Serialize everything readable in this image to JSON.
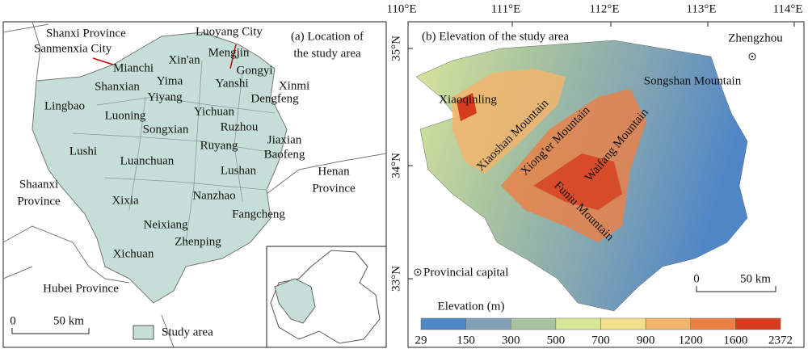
{
  "panel_a": {
    "title_lines": [
      "(a) Location of",
      "the study area"
    ],
    "places": [
      "Shanxi Province",
      "Sanmenxia City",
      "Luoyang City"
    ],
    "counties": [
      "Mianchi",
      "Xin'an",
      "Mengjin",
      "Gongyi",
      "Shanxian",
      "Yima",
      "Yanshi",
      "Xinmi",
      "Lingbao",
      "Yiyang",
      "Dengfeng",
      "Yichuan",
      "Luoning",
      "Songxian",
      "Ruzhou",
      "Jiaxian",
      "Lushi",
      "Ruyang",
      "Baofeng",
      "Luanchuan",
      "Lushan",
      "Xixia",
      "Nanzhao",
      "Neixiang",
      "Fangcheng",
      "Zhenping",
      "Xichuan"
    ],
    "regions": [
      [
        "Shaanxi",
        "Province"
      ],
      [
        "Henan",
        "Province"
      ],
      [
        "Hubei Province"
      ]
    ],
    "scale": [
      "0",
      "50 km"
    ],
    "legend": "Study area"
  },
  "panel_b": {
    "title": "(b) Elevation of the study area",
    "lon_labels": [
      "110°E",
      "111°E",
      "112°E",
      "113°E",
      "114°E"
    ],
    "lat_labels": [
      "35°N",
      "34°N",
      "33°N"
    ],
    "places": [
      "Zhengzhou",
      "Songshan Mountain",
      "Xiaoqinling",
      "Xiaoshan Mountain",
      "Xiong'er Mountain",
      "Waifang Mountain",
      "Funiu Mountain"
    ],
    "capital_legend": "Provincial capital",
    "scale": [
      "0",
      "50 km"
    ],
    "elevation_legend": {
      "title": "Elevation (m)",
      "ticks": [
        29,
        150,
        300,
        500,
        700,
        900,
        1200,
        1600,
        2372
      ],
      "colors": [
        "#4f86c6",
        "#7fa3b4",
        "#a8c3a0",
        "#d8e69a",
        "#f2e08a",
        "#f3b46c",
        "#ec7f43",
        "#d63c1e"
      ]
    }
  }
}
